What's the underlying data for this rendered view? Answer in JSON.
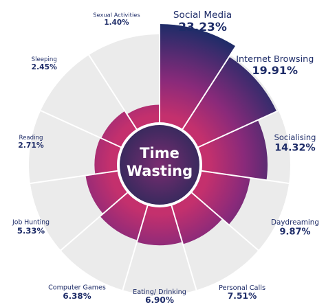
{
  "chart_data": {
    "type": "polar-bar",
    "center_text": [
      "Time",
      "Wasting"
    ],
    "categories": [
      "Social Media",
      "Internet Browsing",
      "Socialising",
      "Daydreaming",
      "Personal Calls",
      "Eating/ Drinking",
      "Computer Games",
      "Job Hunting",
      "Reading",
      "Sleeping",
      "Sexual Activities"
    ],
    "values": [
      23.23,
      19.91,
      14.32,
      9.87,
      7.51,
      6.9,
      6.38,
      5.33,
      2.71,
      2.45,
      1.4
    ],
    "value_labels": [
      "23.23%",
      "19.91%",
      "14.32%",
      "9.87%",
      "7.51%",
      "6.90%",
      "6.38%",
      "5.33%",
      "2.71%",
      "2.45%",
      "1.40%"
    ],
    "colors": [
      "#c4306d",
      "#8a2a7a",
      "#1e2c68"
    ]
  }
}
